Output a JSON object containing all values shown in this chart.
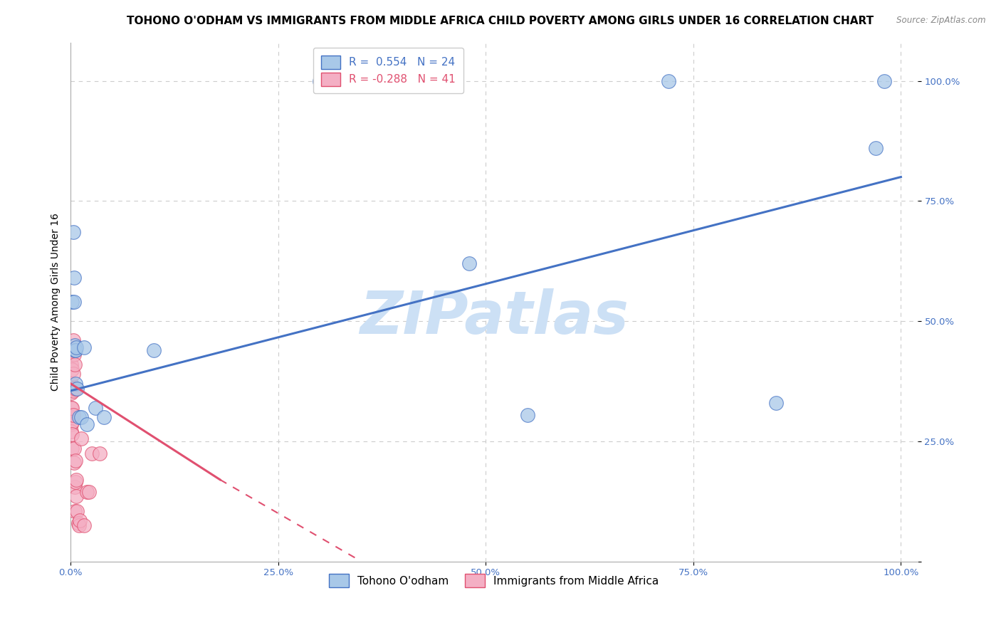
{
  "title": "TOHONO O'ODHAM VS IMMIGRANTS FROM MIDDLE AFRICA CHILD POVERTY AMONG GIRLS UNDER 16 CORRELATION CHART",
  "source": "Source: ZipAtlas.com",
  "ylabel": "Child Poverty Among Girls Under 16",
  "xlabel": "",
  "blue_R": 0.554,
  "blue_N": 24,
  "pink_R": -0.288,
  "pink_N": 41,
  "blue_color": "#a8c8e8",
  "pink_color": "#f4afc4",
  "blue_line_color": "#4472c4",
  "pink_line_color": "#e05070",
  "watermark": "ZIPatlas",
  "blue_points": [
    [
      0.002,
      0.54
    ],
    [
      0.003,
      0.685
    ],
    [
      0.004,
      0.54
    ],
    [
      0.004,
      0.59
    ],
    [
      0.005,
      0.44
    ],
    [
      0.005,
      0.45
    ],
    [
      0.006,
      0.44
    ],
    [
      0.006,
      0.37
    ],
    [
      0.007,
      0.445
    ],
    [
      0.008,
      0.36
    ],
    [
      0.01,
      0.3
    ],
    [
      0.013,
      0.3
    ],
    [
      0.016,
      0.445
    ],
    [
      0.02,
      0.285
    ],
    [
      0.03,
      0.32
    ],
    [
      0.04,
      0.3
    ],
    [
      0.1,
      0.44
    ],
    [
      0.3,
      1.0
    ],
    [
      0.48,
      0.62
    ],
    [
      0.55,
      0.305
    ],
    [
      0.72,
      1.0
    ],
    [
      0.85,
      0.33
    ],
    [
      0.97,
      0.86
    ],
    [
      0.98,
      1.0
    ]
  ],
  "pink_points": [
    [
      0.001,
      0.44
    ],
    [
      0.001,
      0.41
    ],
    [
      0.001,
      0.37
    ],
    [
      0.001,
      0.35
    ],
    [
      0.001,
      0.32
    ],
    [
      0.001,
      0.3
    ],
    [
      0.001,
      0.285
    ],
    [
      0.001,
      0.27
    ],
    [
      0.002,
      0.44
    ],
    [
      0.002,
      0.4
    ],
    [
      0.002,
      0.36
    ],
    [
      0.002,
      0.32
    ],
    [
      0.002,
      0.29
    ],
    [
      0.002,
      0.265
    ],
    [
      0.002,
      0.235
    ],
    [
      0.003,
      0.39
    ],
    [
      0.003,
      0.355
    ],
    [
      0.003,
      0.305
    ],
    [
      0.003,
      0.44
    ],
    [
      0.003,
      0.46
    ],
    [
      0.004,
      0.43
    ],
    [
      0.004,
      0.235
    ],
    [
      0.004,
      0.205
    ],
    [
      0.005,
      0.41
    ],
    [
      0.005,
      0.155
    ],
    [
      0.005,
      0.105
    ],
    [
      0.006,
      0.21
    ],
    [
      0.006,
      0.165
    ],
    [
      0.006,
      0.36
    ],
    [
      0.007,
      0.17
    ],
    [
      0.007,
      0.135
    ],
    [
      0.008,
      0.105
    ],
    [
      0.009,
      0.08
    ],
    [
      0.01,
      0.075
    ],
    [
      0.011,
      0.085
    ],
    [
      0.013,
      0.255
    ],
    [
      0.016,
      0.075
    ],
    [
      0.02,
      0.145
    ],
    [
      0.022,
      0.145
    ],
    [
      0.026,
      0.225
    ],
    [
      0.035,
      0.225
    ]
  ],
  "blue_line": [
    [
      0.0,
      0.355
    ],
    [
      1.0,
      0.8
    ]
  ],
  "pink_line": [
    [
      0.0,
      0.37
    ],
    [
      0.18,
      0.17
    ]
  ],
  "pink_line_dashed_extend": [
    [
      0.18,
      0.17
    ],
    [
      0.35,
      0.0
    ]
  ],
  "xlim": [
    0.0,
    1.02
  ],
  "ylim": [
    0.0,
    1.08
  ],
  "xticks": [
    0.0,
    0.25,
    0.5,
    0.75,
    1.0
  ],
  "xtick_labels": [
    "0.0%",
    "25.0%",
    "50.0%",
    "75.0%",
    "100.0%"
  ],
  "ytick_positions": [
    0.0,
    0.25,
    0.5,
    0.75,
    1.0
  ],
  "ytick_labels": [
    "",
    "25.0%",
    "50.0%",
    "75.0%",
    "100.0%"
  ],
  "grid_color": "#cccccc",
  "legend_label_blue": "Tohono O'odham",
  "legend_label_pink": "Immigrants from Middle Africa",
  "background_color": "#ffffff",
  "title_fontsize": 11,
  "axis_label_fontsize": 10,
  "tick_fontsize": 9.5,
  "legend_fontsize": 11,
  "watermark_color": "#cce0f5",
  "watermark_fontsize": 60
}
